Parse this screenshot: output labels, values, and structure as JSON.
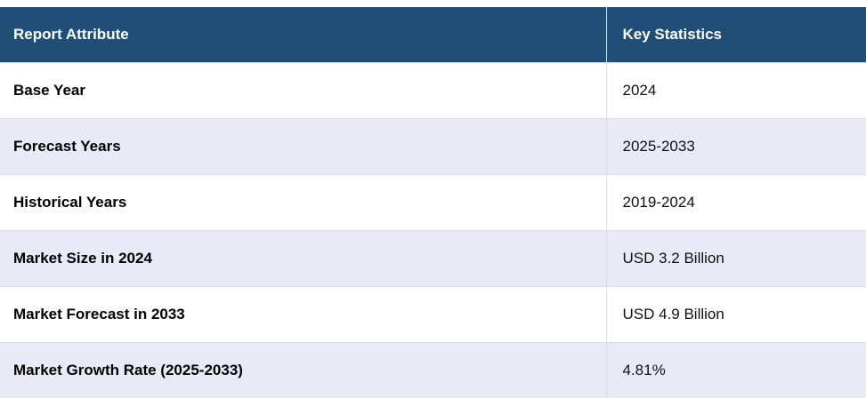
{
  "header": {
    "col1": "Report Attribute",
    "col2": "Key Statistics"
  },
  "rows": [
    {
      "attribute": "Base Year",
      "value": "2024"
    },
    {
      "attribute": "Forecast Years",
      "value": "2025-2033"
    },
    {
      "attribute": "Historical Years",
      "value": "2019-2024"
    },
    {
      "attribute": "Market Size in 2024",
      "value": "USD 3.2 Billion"
    },
    {
      "attribute": "Market Forecast in 2033",
      "value": "USD 4.9 Billion"
    },
    {
      "attribute": "Market Growth Rate (2025-2033)",
      "value": "4.81%"
    }
  ],
  "colors": {
    "header_bg": "#1f4e79",
    "header_text": "#ffffff",
    "stripe_bg": "#e8eaf5"
  }
}
